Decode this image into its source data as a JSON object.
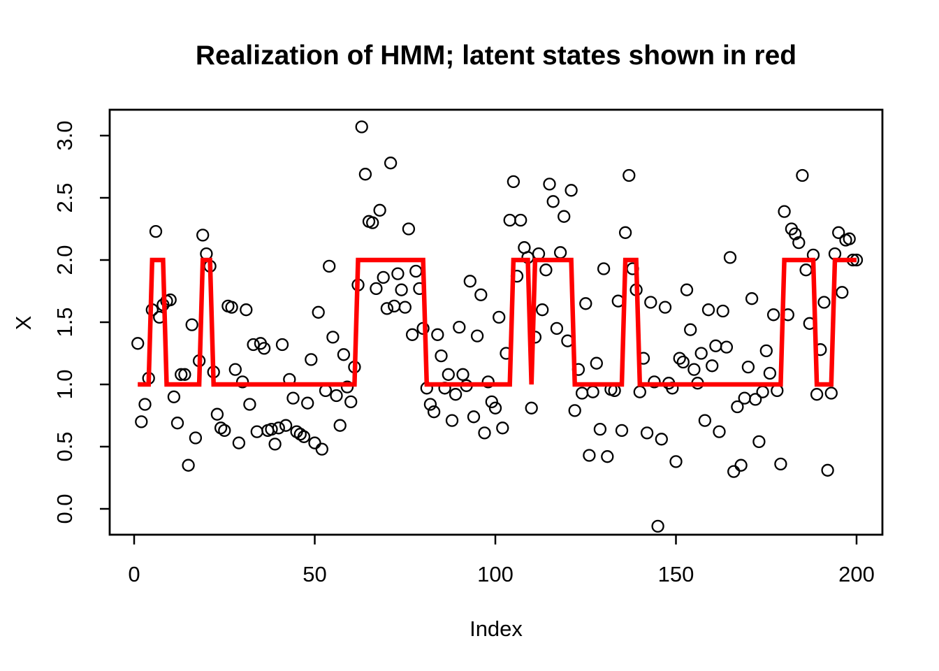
{
  "figure": {
    "title": "Realization of HMM; latent states shown in red",
    "background_color": "#FFFFFF"
  },
  "chart_data": {
    "type": "scatter",
    "title": "Realization of HMM; latent states shown in red",
    "xlabel": "Index",
    "ylabel": "X",
    "xlim": [
      -7,
      208
    ],
    "ylim": [
      -0.21,
      3.21
    ],
    "grid": false,
    "legend": "none",
    "x_ticks": [
      0,
      50,
      100,
      150,
      200
    ],
    "y_ticks": [
      0.0,
      0.5,
      1.0,
      1.5,
      2.0,
      2.5,
      3.0
    ],
    "point_color": "#000000",
    "line_color": "#FF0000",
    "series": [
      {
        "name": "observations",
        "style": "open-circle",
        "x_start": 1,
        "values": [
          1.33,
          0.7,
          0.84,
          1.05,
          1.6,
          2.23,
          1.54,
          1.64,
          1.67,
          1.68,
          0.9,
          0.69,
          1.08,
          1.08,
          0.35,
          1.48,
          0.57,
          1.19,
          2.2,
          2.05,
          1.95,
          1.1,
          0.76,
          0.65,
          0.63,
          1.63,
          1.62,
          1.12,
          0.53,
          1.02,
          1.6,
          0.84,
          1.32,
          0.62,
          1.33,
          1.29,
          0.63,
          0.64,
          0.52,
          0.65,
          1.32,
          0.67,
          1.04,
          0.89,
          0.62,
          0.6,
          0.58,
          0.85,
          1.2,
          0.53,
          1.58,
          0.48,
          0.95,
          1.95,
          1.38,
          0.91,
          0.67,
          1.24,
          0.98,
          0.86,
          1.14,
          1.8,
          3.07,
          2.69,
          2.31,
          2.3,
          1.77,
          2.4,
          1.86,
          1.61,
          2.78,
          1.63,
          1.89,
          1.76,
          1.62,
          2.25,
          1.4,
          1.91,
          1.77,
          1.45,
          0.97,
          0.84,
          0.78,
          1.4,
          1.23,
          0.97,
          1.08,
          0.71,
          0.92,
          1.46,
          1.08,
          0.99,
          1.83,
          0.74,
          1.39,
          1.72,
          0.61,
          1.02,
          0.86,
          0.81,
          1.54,
          0.65,
          1.25,
          2.32,
          2.63,
          1.87,
          2.32,
          2.1,
          2.02,
          0.81,
          1.38,
          2.05,
          1.6,
          1.92,
          2.61,
          2.47,
          1.45,
          2.06,
          2.35,
          1.35,
          2.56,
          0.79,
          1.12,
          0.93,
          1.65,
          0.43,
          0.94,
          1.17,
          0.64,
          1.93,
          0.42,
          0.96,
          0.95,
          1.67,
          0.63,
          2.22,
          2.68,
          1.93,
          1.76,
          0.94,
          1.21,
          0.61,
          1.66,
          1.02,
          -0.14,
          0.56,
          1.62,
          1.01,
          0.97,
          0.38,
          1.21,
          1.18,
          1.76,
          1.44,
          1.12,
          1.01,
          1.25,
          0.71,
          1.6,
          1.15,
          1.31,
          0.62,
          1.59,
          1.3,
          2.02,
          0.3,
          0.82,
          0.35,
          0.89,
          1.14,
          1.69,
          0.88,
          0.54,
          0.94,
          1.27,
          1.09,
          1.56,
          0.95,
          0.36,
          2.39,
          1.56,
          2.25,
          2.21,
          2.14,
          2.68,
          1.92,
          1.49,
          2.04,
          0.92,
          1.28,
          1.66,
          0.31,
          0.93,
          2.05,
          2.22,
          1.74,
          2.16,
          2.17,
          2.0,
          2.0
        ]
      },
      {
        "name": "latent states",
        "style": "step-line",
        "color": "#FF0000",
        "low_state": 1,
        "high_state": 2,
        "x_start": 1,
        "x_end": 200,
        "state2_runs": [
          [
            5,
            8
          ],
          [
            19,
            21
          ],
          [
            62,
            80
          ],
          [
            105,
            109
          ],
          [
            111,
            121
          ],
          [
            136,
            139
          ],
          [
            180,
            188
          ],
          [
            194,
            200
          ]
        ]
      }
    ]
  }
}
